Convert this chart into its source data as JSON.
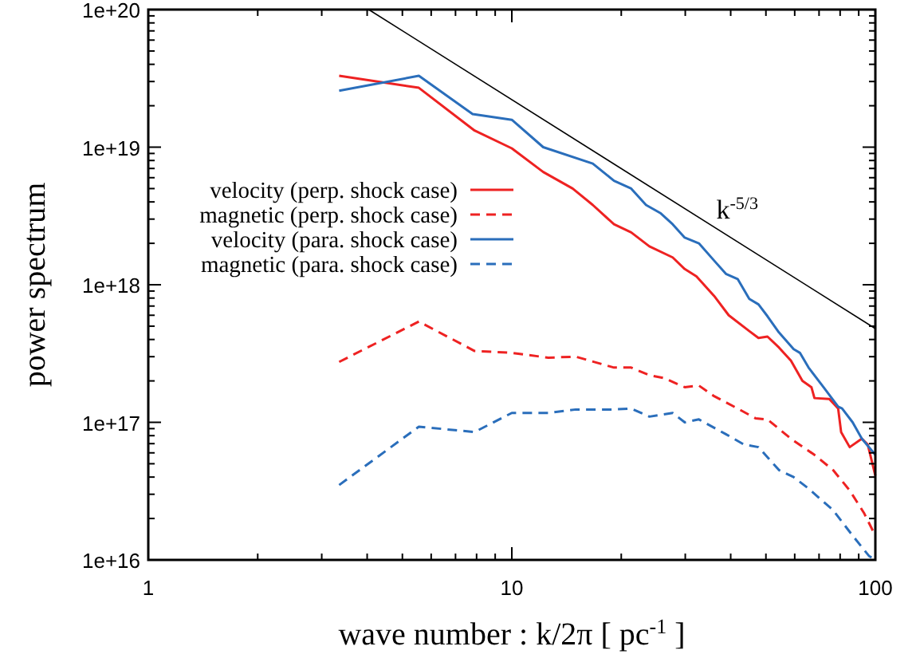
{
  "chart_data": {
    "type": "line",
    "xlabel": "wave number : k/2π [ pc$^{-1}$ ]",
    "ylabel": "power spectrum",
    "log": "xy",
    "legend": "top left",
    "xlim": [
      1,
      100
    ],
    "ylim": [
      1e+16,
      1e+20
    ],
    "xticks": [
      1,
      {
        "value": 2,
        "label": null
      },
      {
        "value": 3,
        "label": null
      },
      {
        "value": 4,
        "label": null
      },
      {
        "value": 5,
        "label": null
      },
      {
        "value": 6,
        "label": null
      },
      {
        "value": 7,
        "label": null
      },
      {
        "value": 8,
        "label": null
      },
      {
        "value": 9,
        "label": null
      },
      10,
      {
        "value": 20,
        "label": null
      },
      {
        "value": 30,
        "label": null
      },
      {
        "value": 40,
        "label": null
      },
      {
        "value": 50,
        "label": null
      },
      {
        "value": 60,
        "label": null
      },
      {
        "value": 70,
        "label": null
      },
      {
        "value": 80,
        "label": null
      },
      {
        "value": 90,
        "label": null
      },
      100
    ],
    "yticks": [
      {
        "value": 1e+16,
        "label": "1e+16"
      },
      {
        "value": 2e+16,
        "label": null
      },
      {
        "value": 3e+16,
        "label": null
      },
      {
        "value": 4e+16,
        "label": null
      },
      {
        "value": 5e+16,
        "label": null
      },
      {
        "value": 6e+16,
        "label": null
      },
      {
        "value": 7e+16,
        "label": null
      },
      {
        "value": 8e+16,
        "label": null
      },
      {
        "value": 9e+16,
        "label": null
      },
      {
        "value": 1e+17,
        "label": "1e+17"
      },
      {
        "value": 2e+17,
        "label": null
      },
      {
        "value": 3e+17,
        "label": null
      },
      {
        "value": 4e+17,
        "label": null
      },
      {
        "value": 5e+17,
        "label": null
      },
      {
        "value": 6e+17,
        "label": null
      },
      {
        "value": 7e+17,
        "label": null
      },
      {
        "value": 8e+17,
        "label": null
      },
      {
        "value": 9e+17,
        "label": null
      },
      {
        "value": 1e+18,
        "label": "1e+18"
      },
      {
        "value": 2e+18,
        "label": null
      },
      {
        "value": 3e+18,
        "label": null
      },
      {
        "value": 4e+18,
        "label": null
      },
      {
        "value": 5e+18,
        "label": null
      },
      {
        "value": 6e+18,
        "label": null
      },
      {
        "value": 7e+18,
        "label": null
      },
      {
        "value": 8e+18,
        "label": null
      },
      {
        "value": 9e+18,
        "label": null
      },
      {
        "value": 1e+19,
        "label": "1e+19"
      },
      {
        "value": 2e+19,
        "label": null
      },
      {
        "value": 3e+19,
        "label": null
      },
      {
        "value": 4e+19,
        "label": null
      },
      {
        "value": 5e+19,
        "label": null
      },
      {
        "value": 6e+19,
        "label": null
      },
      {
        "value": 7e+19,
        "label": null
      },
      {
        "value": 8e+19,
        "label": null
      },
      {
        "value": 9e+19,
        "label": null
      },
      {
        "value": 1e+20,
        "label": "1e+20"
      }
    ],
    "series": [
      {
        "name": "velocity (perp. shock case)",
        "color": "#ee2222",
        "line_style": "solid",
        "x": [
          3.35,
          5.55,
          7.9,
          10,
          12.2,
          14.7,
          16.7,
          19.1,
          21.3,
          23.9,
          27.7,
          29.9,
          32.2,
          36,
          39.5,
          45,
          47.7,
          50.5,
          54.3,
          58.6,
          63,
          66.7,
          68,
          74.7,
          79,
          80.5,
          85,
          91.8,
          95.3,
          100
        ],
        "values": [
          3.3e+19,
          2.7e+19,
          1.32e+19,
          9.8e+18,
          6.6e+18,
          5e+18,
          3.8e+18,
          2.75e+18,
          2.4e+18,
          1.9e+18,
          1.58e+18,
          1.3e+18,
          1.15e+18,
          8.3e+17,
          6e+17,
          4.6e+17,
          4.1e+17,
          4.2e+17,
          3.5e+17,
          2.8e+17,
          2e+17,
          1.8e+17,
          1.5e+17,
          1.48e+17,
          1.26e+17,
          8.5e+16,
          6.6e+16,
          7.6e+16,
          6.9e+16,
          4.1e+16
        ]
      },
      {
        "name": "magnetic (perp. shock case)",
        "color": "#ee2222",
        "line_style": "dashed",
        "x": [
          3.35,
          5.55,
          7.9,
          10,
          12.6,
          15,
          19.1,
          21.3,
          23.9,
          26.2,
          29.9,
          32.7,
          36,
          41.8,
          46.8,
          50.5,
          58.6,
          68,
          76.5,
          85,
          93,
          100
        ],
        "values": [
          2.75e+17,
          5.4e+17,
          3.3e+17,
          3.2e+17,
          2.95e+17,
          3e+17,
          2.5e+17,
          2.5e+17,
          2.2e+17,
          2.1e+17,
          1.8e+17,
          1.85e+17,
          1.55e+17,
          1.26e+17,
          1.07e+17,
          1.05e+17,
          7.6e+16,
          5.8e+16,
          4.5e+16,
          3.2e+16,
          2.2e+16,
          1.5e+16
        ]
      },
      {
        "name": "velocity (para. shock case)",
        "color": "#2a6ebb",
        "line_style": "solid",
        "x": [
          3.35,
          5.55,
          7.8,
          10,
          12.2,
          16.7,
          19.1,
          21.3,
          23.4,
          25.7,
          27.7,
          29.9,
          32.7,
          36,
          38.8,
          41.8,
          45,
          47.7,
          50.5,
          54.3,
          59.6,
          62,
          65.5,
          72,
          79,
          81,
          86.6,
          91.8,
          100
        ],
        "values": [
          2.57e+19,
          3.3e+19,
          1.74e+19,
          1.58e+19,
          1e+19,
          7.6e+18,
          5.7e+18,
          5e+18,
          3.8e+18,
          3.3e+18,
          2.75e+18,
          2.2e+18,
          2e+18,
          1.5e+18,
          1.2e+18,
          1.1e+18,
          7.9e+17,
          7.2e+17,
          5.9e+17,
          4.5e+17,
          3.4e+17,
          3.2e+17,
          2.5e+17,
          1.8e+17,
          1.3e+17,
          1.26e+17,
          1e+17,
          7.6e+16,
          5.8e+16
        ]
      },
      {
        "name": "magnetic (para. shock case)",
        "color": "#2a6ebb",
        "line_style": "dashed",
        "x": [
          3.35,
          5.55,
          7.9,
          10,
          12.6,
          15,
          19.1,
          21.3,
          23.9,
          27.7,
          29.9,
          32.7,
          38.8,
          43.5,
          47.7,
          54.3,
          59.6,
          65.5,
          76.5,
          86.6,
          96,
          100
        ],
        "values": [
          3.5e+16,
          9.3e+16,
          8.5e+16,
          1.17e+17,
          1.17e+17,
          1.24e+17,
          1.24e+17,
          1.26e+17,
          1.1e+17,
          1.17e+17,
          1e+17,
          1.05e+17,
          8.2e+16,
          6.9e+16,
          6.6e+16,
          4.5e+16,
          4e+16,
          3.3e+16,
          2.3e+16,
          1.5e+16,
          1.07e+16,
          1e+16
        ]
      },
      {
        "color": "#000000",
        "line_style": "solid",
        "x": [
          4.04,
          100
        ],
        "values": [
          1e+20,
          4.8e+17
        ]
      }
    ],
    "annotations": [
      "k$^{-5/3}$"
    ]
  }
}
